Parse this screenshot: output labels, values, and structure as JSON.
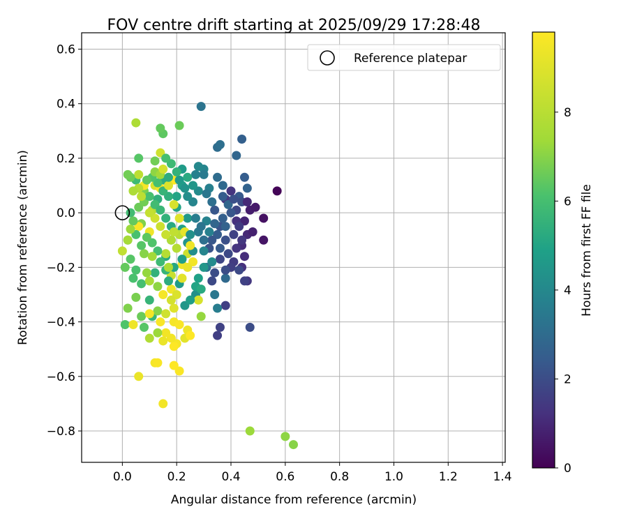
{
  "chart_data": {
    "type": "scatter",
    "title": "FOV centre drift starting at 2025/09/29 17:28:48",
    "xlabel": "Angular distance from reference (arcmin)",
    "ylabel": "Rotation from reference (arcmin)",
    "xlim": [
      -0.15,
      1.41
    ],
    "ylim": [
      -0.915,
      0.66
    ],
    "xticks": [
      0.0,
      0.2,
      0.4,
      0.6,
      0.8,
      1.0,
      1.2,
      1.4
    ],
    "xtick_labels": [
      "0.0",
      "0.2",
      "0.4",
      "0.6",
      "0.8",
      "1.0",
      "1.2",
      "1.4"
    ],
    "yticks": [
      0.6,
      0.4,
      0.2,
      0.0,
      -0.2,
      -0.4,
      -0.6,
      -0.8
    ],
    "ytick_labels": [
      "0.6",
      "0.4",
      "0.2",
      "0.0",
      "−0.2",
      "−0.4",
      "−0.6",
      "−0.8"
    ],
    "grid": true,
    "legend": {
      "position": "top-right",
      "label": "Reference platepar"
    },
    "reference_point": {
      "x": 0.0,
      "y": 0.0
    },
    "colorbar": {
      "label": "Hours from first FF file",
      "range": [
        0,
        9.8
      ],
      "ticks": [
        0,
        2,
        4,
        6,
        8
      ],
      "tick_labels": [
        "0",
        "2",
        "4",
        "6",
        "8"
      ],
      "colormap": "viridis"
    },
    "points": [
      {
        "x": 0.57,
        "y": 0.08,
        "h": 0.1
      },
      {
        "x": 0.52,
        "y": -0.02,
        "h": 0.4
      },
      {
        "x": 0.52,
        "y": -0.1,
        "h": 0.5
      },
      {
        "x": 0.47,
        "y": 0.01,
        "h": 0.7
      },
      {
        "x": 0.45,
        "y": -0.03,
        "h": 0.9
      },
      {
        "x": 0.46,
        "y": -0.08,
        "h": 1.0
      },
      {
        "x": 0.44,
        "y": -0.12,
        "h": 1.1
      },
      {
        "x": 0.42,
        "y": -0.03,
        "h": 1.2
      },
      {
        "x": 0.4,
        "y": 0.08,
        "h": 1.3
      },
      {
        "x": 0.38,
        "y": 0.05,
        "h": 1.4
      },
      {
        "x": 0.41,
        "y": -0.18,
        "h": 1.5
      },
      {
        "x": 0.44,
        "y": -0.2,
        "h": 1.2
      },
      {
        "x": 0.46,
        "y": -0.25,
        "h": 1.4
      },
      {
        "x": 0.38,
        "y": -0.34,
        "h": 1.6
      },
      {
        "x": 0.36,
        "y": -0.42,
        "h": 1.7
      },
      {
        "x": 0.35,
        "y": -0.45,
        "h": 1.6
      },
      {
        "x": 0.47,
        "y": -0.42,
        "h": 2.0
      },
      {
        "x": 0.36,
        "y": -0.17,
        "h": 1.8
      },
      {
        "x": 0.34,
        "y": -0.22,
        "h": 2.0
      },
      {
        "x": 0.33,
        "y": -0.25,
        "h": 1.9
      },
      {
        "x": 0.36,
        "y": -0.05,
        "h": 2.2
      },
      {
        "x": 0.38,
        "y": -0.1,
        "h": 2.1
      },
      {
        "x": 0.34,
        "y": 0.01,
        "h": 2.3
      },
      {
        "x": 0.43,
        "y": 0.06,
        "h": 2.4
      },
      {
        "x": 0.44,
        "y": 0.27,
        "h": 2.6
      },
      {
        "x": 0.42,
        "y": 0.21,
        "h": 2.8
      },
      {
        "x": 0.45,
        "y": 0.13,
        "h": 2.5
      },
      {
        "x": 0.46,
        "y": 0.09,
        "h": 2.7
      },
      {
        "x": 0.35,
        "y": 0.24,
        "h": 3.0
      },
      {
        "x": 0.36,
        "y": 0.25,
        "h": 3.1
      },
      {
        "x": 0.29,
        "y": 0.39,
        "h": 3.3
      },
      {
        "x": 0.38,
        "y": -0.24,
        "h": 2.9
      },
      {
        "x": 0.31,
        "y": -0.2,
        "h": 3.2
      },
      {
        "x": 0.34,
        "y": -0.3,
        "h": 3.4
      },
      {
        "x": 0.35,
        "y": -0.35,
        "h": 3.6
      },
      {
        "x": 0.28,
        "y": -0.07,
        "h": 3.5
      },
      {
        "x": 0.31,
        "y": -0.03,
        "h": 3.8
      },
      {
        "x": 0.32,
        "y": 0.09,
        "h": 3.7
      },
      {
        "x": 0.3,
        "y": 0.16,
        "h": 3.9
      },
      {
        "x": 0.28,
        "y": 0.17,
        "h": 4.0
      },
      {
        "x": 0.33,
        "y": -0.18,
        "h": 4.1
      },
      {
        "x": 0.27,
        "y": -0.3,
        "h": 4.3
      },
      {
        "x": 0.23,
        "y": -0.34,
        "h": 4.5
      },
      {
        "x": 0.21,
        "y": -0.26,
        "h": 4.7
      },
      {
        "x": 0.24,
        "y": -0.02,
        "h": 4.6
      },
      {
        "x": 0.22,
        "y": 0.1,
        "h": 4.8
      },
      {
        "x": 0.2,
        "y": 0.06,
        "h": 5.0
      },
      {
        "x": 0.18,
        "y": -0.1,
        "h": 5.1
      },
      {
        "x": 0.16,
        "y": -0.16,
        "h": 5.2
      },
      {
        "x": 0.15,
        "y": 0.12,
        "h": 5.3
      },
      {
        "x": 0.13,
        "y": 0.05,
        "h": 5.4
      },
      {
        "x": 0.12,
        "y": -0.22,
        "h": 5.5
      },
      {
        "x": 0.1,
        "y": -0.32,
        "h": 5.6
      },
      {
        "x": 0.11,
        "y": -0.38,
        "h": 5.7
      },
      {
        "x": 0.05,
        "y": 0.12,
        "h": 5.8
      },
      {
        "x": 0.03,
        "y": 0.0,
        "h": 5.9
      },
      {
        "x": 0.02,
        "y": -0.1,
        "h": 6.0
      },
      {
        "x": 0.04,
        "y": -0.24,
        "h": 6.1
      },
      {
        "x": 0.01,
        "y": -0.41,
        "h": 6.2
      },
      {
        "x": 0.06,
        "y": 0.2,
        "h": 6.3
      },
      {
        "x": 0.15,
        "y": 0.29,
        "h": 6.4
      },
      {
        "x": 0.14,
        "y": 0.31,
        "h": 6.5
      },
      {
        "x": 0.21,
        "y": 0.32,
        "h": 6.6
      },
      {
        "x": 0.12,
        "y": 0.19,
        "h": 6.7
      },
      {
        "x": 0.08,
        "y": 0.08,
        "h": 6.8
      },
      {
        "x": 0.07,
        "y": -0.04,
        "h": 6.9
      },
      {
        "x": 0.08,
        "y": -0.15,
        "h": 7.0
      },
      {
        "x": 0.13,
        "y": -0.27,
        "h": 7.1
      },
      {
        "x": 0.29,
        "y": -0.38,
        "h": 7.2
      },
      {
        "x": 0.47,
        "y": -0.8,
        "h": 7.3
      },
      {
        "x": 0.6,
        "y": -0.82,
        "h": 7.1
      },
      {
        "x": 0.63,
        "y": -0.85,
        "h": 7.0
      },
      {
        "x": 0.05,
        "y": 0.33,
        "h": 7.7
      },
      {
        "x": 0.1,
        "y": -0.46,
        "h": 7.8
      },
      {
        "x": 0.16,
        "y": -0.15,
        "h": 7.9
      },
      {
        "x": 0.11,
        "y": 0.01,
        "h": 8.0
      },
      {
        "x": 0.06,
        "y": 0.14,
        "h": 8.1
      },
      {
        "x": 0.0,
        "y": -0.14,
        "h": 8.2
      },
      {
        "x": 0.18,
        "y": -0.23,
        "h": 8.4
      },
      {
        "x": 0.24,
        "y": -0.15,
        "h": 8.5
      },
      {
        "x": 0.14,
        "y": 0.22,
        "h": 8.6
      },
      {
        "x": 0.28,
        "y": -0.32,
        "h": 8.8
      },
      {
        "x": 0.12,
        "y": 0.1,
        "h": 8.9
      },
      {
        "x": 0.19,
        "y": -0.35,
        "h": 9.0
      },
      {
        "x": 0.23,
        "y": -0.46,
        "h": 9.1
      },
      {
        "x": 0.06,
        "y": -0.6,
        "h": 9.3
      },
      {
        "x": 0.15,
        "y": -0.7,
        "h": 9.5
      },
      {
        "x": 0.12,
        "y": -0.55,
        "h": 9.6
      },
      {
        "x": 0.21,
        "y": -0.58,
        "h": 9.7
      },
      {
        "x": 0.19,
        "y": -0.56,
        "h": 9.8
      },
      {
        "x": 0.2,
        "y": -0.48,
        "h": 9.6
      },
      {
        "x": 0.16,
        "y": -0.44,
        "h": 9.5
      },
      {
        "x": 0.14,
        "y": -0.4,
        "h": 9.7
      },
      {
        "x": 0.18,
        "y": -0.28,
        "h": 9.4
      },
      {
        "x": 0.15,
        "y": -0.3,
        "h": 9.6
      },
      {
        "x": 0.22,
        "y": -0.19,
        "h": 9.4
      },
      {
        "x": 0.19,
        "y": 0.12,
        "h": 9.8
      },
      {
        "x": 0.08,
        "y": 0.1,
        "h": 9.6
      },
      {
        "x": 0.14,
        "y": 0.09,
        "h": 9.5
      },
      {
        "x": 0.1,
        "y": -0.07,
        "h": 9.4
      },
      {
        "x": 0.06,
        "y": -0.05,
        "h": 9.7
      },
      {
        "x": 0.27,
        "y": 0.14,
        "h": 3.7
      },
      {
        "x": 0.3,
        "y": 0.14,
        "h": 3.5
      },
      {
        "x": 0.35,
        "y": 0.13,
        "h": 3.0
      },
      {
        "x": 0.37,
        "y": 0.1,
        "h": 2.9
      },
      {
        "x": 0.39,
        "y": 0.03,
        "h": 2.8
      },
      {
        "x": 0.37,
        "y": -0.02,
        "h": 2.6
      },
      {
        "x": 0.34,
        "y": -0.04,
        "h": 2.8
      },
      {
        "x": 0.35,
        "y": -0.08,
        "h": 2.5
      },
      {
        "x": 0.33,
        "y": -0.1,
        "h": 2.3
      },
      {
        "x": 0.32,
        "y": -0.13,
        "h": 2.2
      },
      {
        "x": 0.3,
        "y": -0.1,
        "h": 3.1
      },
      {
        "x": 0.29,
        "y": -0.05,
        "h": 3.3
      },
      {
        "x": 0.27,
        "y": -0.02,
        "h": 3.6
      },
      {
        "x": 0.26,
        "y": 0.04,
        "h": 3.9
      },
      {
        "x": 0.24,
        "y": 0.06,
        "h": 4.2
      },
      {
        "x": 0.23,
        "y": 0.09,
        "h": 4.4
      },
      {
        "x": 0.21,
        "y": 0.12,
        "h": 4.6
      },
      {
        "x": 0.22,
        "y": 0.16,
        "h": 4.7
      },
      {
        "x": 0.2,
        "y": 0.02,
        "h": 5.0
      },
      {
        "x": 0.22,
        "y": -0.06,
        "h": 4.9
      },
      {
        "x": 0.24,
        "y": -0.11,
        "h": 4.4
      },
      {
        "x": 0.26,
        "y": -0.14,
        "h": 4.2
      },
      {
        "x": 0.22,
        "y": -0.17,
        "h": 4.8
      },
      {
        "x": 0.19,
        "y": -0.2,
        "h": 5.1
      },
      {
        "x": 0.17,
        "y": -0.25,
        "h": 5.3
      },
      {
        "x": 0.16,
        "y": -0.21,
        "h": 5.6
      },
      {
        "x": 0.14,
        "y": -0.18,
        "h": 5.8
      },
      {
        "x": 0.13,
        "y": -0.14,
        "h": 6.0
      },
      {
        "x": 0.11,
        "y": -0.11,
        "h": 6.2
      },
      {
        "x": 0.09,
        "y": -0.09,
        "h": 6.4
      },
      {
        "x": 0.07,
        "y": -0.12,
        "h": 6.3
      },
      {
        "x": 0.05,
        "y": -0.08,
        "h": 6.1
      },
      {
        "x": 0.04,
        "y": -0.03,
        "h": 6.5
      },
      {
        "x": 0.06,
        "y": 0.02,
        "h": 6.6
      },
      {
        "x": 0.08,
        "y": 0.04,
        "h": 6.7
      },
      {
        "x": 0.1,
        "y": 0.06,
        "h": 6.0
      },
      {
        "x": 0.12,
        "y": 0.03,
        "h": 5.9
      },
      {
        "x": 0.14,
        "y": 0.01,
        "h": 5.7
      },
      {
        "x": 0.16,
        "y": -0.02,
        "h": 5.5
      },
      {
        "x": 0.18,
        "y": -0.05,
        "h": 5.2
      },
      {
        "x": 0.17,
        "y": 0.06,
        "h": 5.4
      },
      {
        "x": 0.15,
        "y": 0.08,
        "h": 5.6
      },
      {
        "x": 0.13,
        "y": 0.11,
        "h": 6.0
      },
      {
        "x": 0.11,
        "y": 0.13,
        "h": 6.2
      },
      {
        "x": 0.09,
        "y": 0.12,
        "h": 6.4
      },
      {
        "x": 0.03,
        "y": 0.13,
        "h": 6.6
      },
      {
        "x": 0.02,
        "y": 0.14,
        "h": 6.7
      },
      {
        "x": 0.01,
        "y": -0.2,
        "h": 6.5
      },
      {
        "x": 0.03,
        "y": -0.17,
        "h": 6.3
      },
      {
        "x": 0.05,
        "y": -0.21,
        "h": 6.1
      },
      {
        "x": 0.07,
        "y": -0.26,
        "h": 6.0
      },
      {
        "x": 0.08,
        "y": -0.42,
        "h": 6.3
      },
      {
        "x": 0.07,
        "y": -0.38,
        "h": 6.6
      },
      {
        "x": 0.05,
        "y": -0.31,
        "h": 6.8
      },
      {
        "x": 0.02,
        "y": -0.35,
        "h": 6.9
      },
      {
        "x": 0.13,
        "y": -0.36,
        "h": 7.0
      },
      {
        "x": 0.13,
        "y": -0.44,
        "h": 7.3
      },
      {
        "x": 0.09,
        "y": -0.22,
        "h": 7.2
      },
      {
        "x": 0.11,
        "y": -0.16,
        "h": 7.4
      },
      {
        "x": 0.1,
        "y": -0.25,
        "h": 7.6
      },
      {
        "x": 0.17,
        "y": -0.2,
        "h": 7.7
      },
      {
        "x": 0.18,
        "y": -0.1,
        "h": 7.8
      },
      {
        "x": 0.2,
        "y": -0.13,
        "h": 7.9
      },
      {
        "x": 0.21,
        "y": -0.08,
        "h": 8.0
      },
      {
        "x": 0.19,
        "y": -0.07,
        "h": 8.2
      },
      {
        "x": 0.16,
        "y": -0.08,
        "h": 8.4
      },
      {
        "x": 0.14,
        "y": -0.05,
        "h": 8.5
      },
      {
        "x": 0.12,
        "y": -0.02,
        "h": 8.6
      },
      {
        "x": 0.1,
        "y": 0.0,
        "h": 8.3
      },
      {
        "x": 0.07,
        "y": 0.06,
        "h": 8.1
      },
      {
        "x": 0.06,
        "y": 0.09,
        "h": 7.9
      },
      {
        "x": 0.04,
        "y": 0.08,
        "h": 7.7
      },
      {
        "x": 0.02,
        "y": -0.1,
        "h": 7.5
      },
      {
        "x": 0.03,
        "y": -0.06,
        "h": 7.3
      },
      {
        "x": 0.12,
        "y": 0.15,
        "h": 7.1
      },
      {
        "x": 0.14,
        "y": 0.14,
        "h": 7.4
      },
      {
        "x": 0.15,
        "y": 0.16,
        "h": 8.7
      },
      {
        "x": 0.17,
        "y": 0.1,
        "h": 8.9
      },
      {
        "x": 0.19,
        "y": 0.03,
        "h": 8.8
      },
      {
        "x": 0.21,
        "y": -0.02,
        "h": 9.0
      },
      {
        "x": 0.23,
        "y": -0.07,
        "h": 9.2
      },
      {
        "x": 0.25,
        "y": -0.12,
        "h": 9.4
      },
      {
        "x": 0.26,
        "y": -0.18,
        "h": 9.5
      },
      {
        "x": 0.24,
        "y": -0.2,
        "h": 9.3
      },
      {
        "x": 0.22,
        "y": -0.24,
        "h": 9.1
      },
      {
        "x": 0.2,
        "y": -0.3,
        "h": 8.9
      },
      {
        "x": 0.18,
        "y": -0.32,
        "h": 8.7
      },
      {
        "x": 0.16,
        "y": -0.37,
        "h": 8.6
      },
      {
        "x": 0.19,
        "y": -0.4,
        "h": 9.6
      },
      {
        "x": 0.21,
        "y": -0.41,
        "h": 9.7
      },
      {
        "x": 0.24,
        "y": -0.43,
        "h": 9.4
      },
      {
        "x": 0.25,
        "y": -0.45,
        "h": 9.8
      },
      {
        "x": 0.18,
        "y": -0.46,
        "h": 9.5
      },
      {
        "x": 0.15,
        "y": -0.47,
        "h": 9.3
      },
      {
        "x": 0.13,
        "y": -0.55,
        "h": 9.7
      },
      {
        "x": 0.19,
        "y": -0.49,
        "h": 9.8
      },
      {
        "x": 0.1,
        "y": -0.37,
        "h": 9.6
      },
      {
        "x": 0.04,
        "y": -0.41,
        "h": 9.4
      },
      {
        "x": 0.27,
        "y": -0.27,
        "h": 5.0
      },
      {
        "x": 0.25,
        "y": -0.32,
        "h": 4.8
      },
      {
        "x": 0.29,
        "y": -0.28,
        "h": 5.2
      },
      {
        "x": 0.3,
        "y": -0.2,
        "h": 4.5
      },
      {
        "x": 0.28,
        "y": -0.24,
        "h": 4.9
      },
      {
        "x": 0.25,
        "y": -0.08,
        "h": 4.3
      },
      {
        "x": 0.28,
        "y": 0.08,
        "h": 4.1
      },
      {
        "x": 0.26,
        "y": 0.1,
        "h": 4.5
      },
      {
        "x": 0.24,
        "y": 0.13,
        "h": 5.2
      },
      {
        "x": 0.2,
        "y": 0.15,
        "h": 5.5
      },
      {
        "x": 0.18,
        "y": 0.18,
        "h": 5.8
      },
      {
        "x": 0.16,
        "y": 0.2,
        "h": 6.0
      },
      {
        "x": 0.17,
        "y": 0.13,
        "h": 5.3
      },
      {
        "x": 0.39,
        "y": -0.15,
        "h": 1.9
      },
      {
        "x": 0.41,
        "y": -0.08,
        "h": 1.7
      },
      {
        "x": 0.43,
        "y": -0.05,
        "h": 1.5
      },
      {
        "x": 0.42,
        "y": 0.01,
        "h": 1.8
      },
      {
        "x": 0.44,
        "y": 0.04,
        "h": 2.0
      },
      {
        "x": 0.4,
        "y": 0.0,
        "h": 2.3
      },
      {
        "x": 0.38,
        "y": -0.05,
        "h": 2.7
      },
      {
        "x": 0.36,
        "y": -0.13,
        "h": 2.4
      },
      {
        "x": 0.4,
        "y": -0.2,
        "h": 1.6
      },
      {
        "x": 0.42,
        "y": -0.13,
        "h": 1.3
      },
      {
        "x": 0.45,
        "y": -0.16,
        "h": 1.1
      },
      {
        "x": 0.48,
        "y": -0.07,
        "h": 0.8
      },
      {
        "x": 0.49,
        "y": 0.02,
        "h": 0.6
      },
      {
        "x": 0.46,
        "y": 0.04,
        "h": 1.0
      },
      {
        "x": 0.38,
        "y": -0.21,
        "h": 2.0
      },
      {
        "x": 0.44,
        "y": -0.1,
        "h": 1.4
      },
      {
        "x": 0.41,
        "y": 0.05,
        "h": 2.1
      },
      {
        "x": 0.37,
        "y": 0.06,
        "h": 2.5
      },
      {
        "x": 0.33,
        "y": 0.04,
        "h": 3.1
      },
      {
        "x": 0.31,
        "y": 0.07,
        "h": 3.4
      },
      {
        "x": 0.32,
        "y": -0.07,
        "h": 3.7
      },
      {
        "x": 0.3,
        "y": -0.14,
        "h": 3.9
      },
      {
        "x": 0.43,
        "y": -0.21,
        "h": 1.9
      },
      {
        "x": 0.45,
        "y": -0.25,
        "h": 1.7
      }
    ]
  }
}
